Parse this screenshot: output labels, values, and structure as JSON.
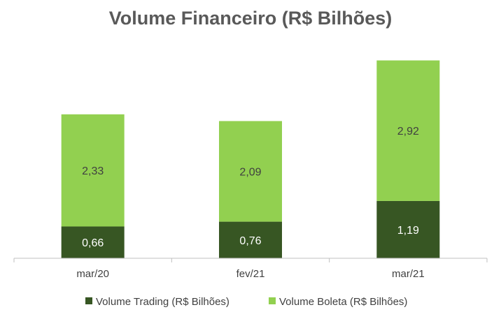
{
  "chart_data": {
    "type": "bar",
    "stacked": true,
    "title": "Volume Financeiro (R$ Bilhões)",
    "xlabel": "",
    "ylabel": "",
    "categories": [
      "mar/20",
      "fev/21",
      "mar/21"
    ],
    "series": [
      {
        "name": "Volume Trading (R$ Bilhões)",
        "values": [
          0.66,
          0.76,
          1.19
        ],
        "labels": [
          "0,66",
          "0,76",
          "1,19"
        ],
        "color": "#375623",
        "label_color": "#ffffff"
      },
      {
        "name": "Volume Boleta (R$ Bilhões)",
        "values": [
          2.33,
          2.09,
          2.92
        ],
        "labels": [
          "2,33",
          "2,09",
          "2,92"
        ],
        "color": "#92d050",
        "label_color": "#404040"
      }
    ],
    "ylim": [
      0,
      4.35
    ],
    "grid": false,
    "legend_position": "bottom",
    "axis_color": "#bfbfbf"
  }
}
